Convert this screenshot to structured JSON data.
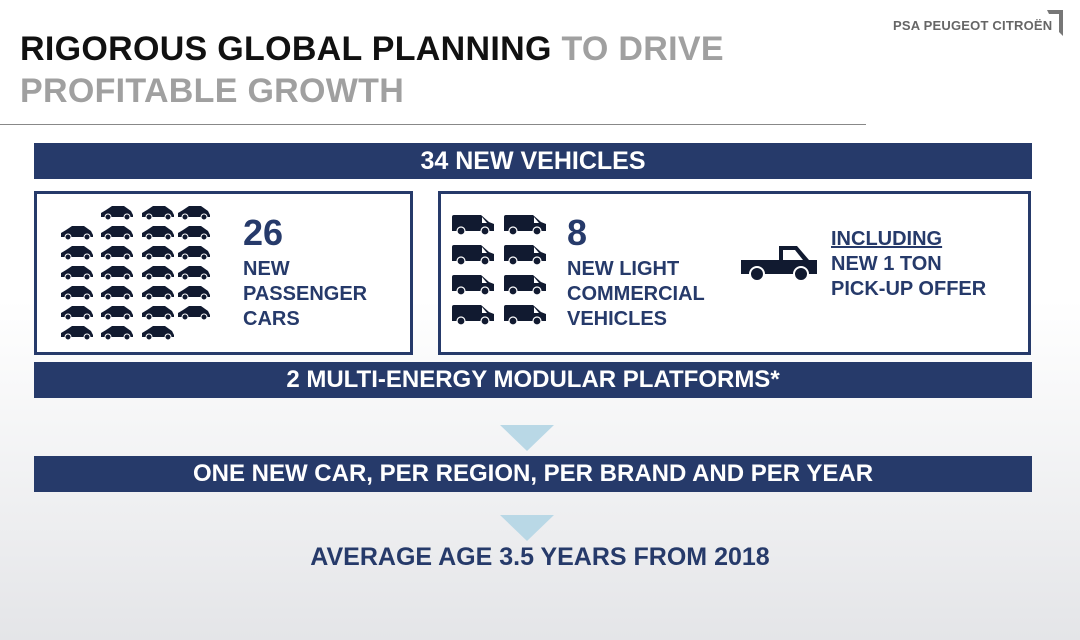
{
  "header": {
    "title_dark": "RIGOROUS GLOBAL PLANNING",
    "title_gray_1": " TO DRIVE",
    "title_gray_2": "PROFITABLE GROWTH",
    "logo_text": "PSA PEUGEOT CITROËN"
  },
  "colors": {
    "navy": "#263a6a",
    "accent_arrow": "#b9d8e6",
    "title_gray": "#a0a0a0"
  },
  "top_bar": "34 NEW VEHICLES",
  "passenger": {
    "count": "26",
    "label": [
      "NEW",
      "PASSENGER",
      "CARS"
    ],
    "icon": "car-icon",
    "icon_count": 26
  },
  "commercial": {
    "count": "8",
    "label": [
      "NEW LIGHT",
      "COMMERCIAL",
      "VEHICLES"
    ],
    "icon": "van-icon",
    "icon_count": 8,
    "pickup_icon": "pickup-truck-icon",
    "note_underlined": "INCLUDING",
    "note": [
      "NEW 1 TON",
      "PICK-UP OFFER"
    ]
  },
  "platforms_bar": "2 MULTI-ENERGY MODULAR PLATFORMS*",
  "region_bar": "ONE NEW CAR, PER REGION, PER BRAND AND PER YEAR",
  "bottom_text": "AVERAGE AGE 3.5 YEARS FROM 2018"
}
